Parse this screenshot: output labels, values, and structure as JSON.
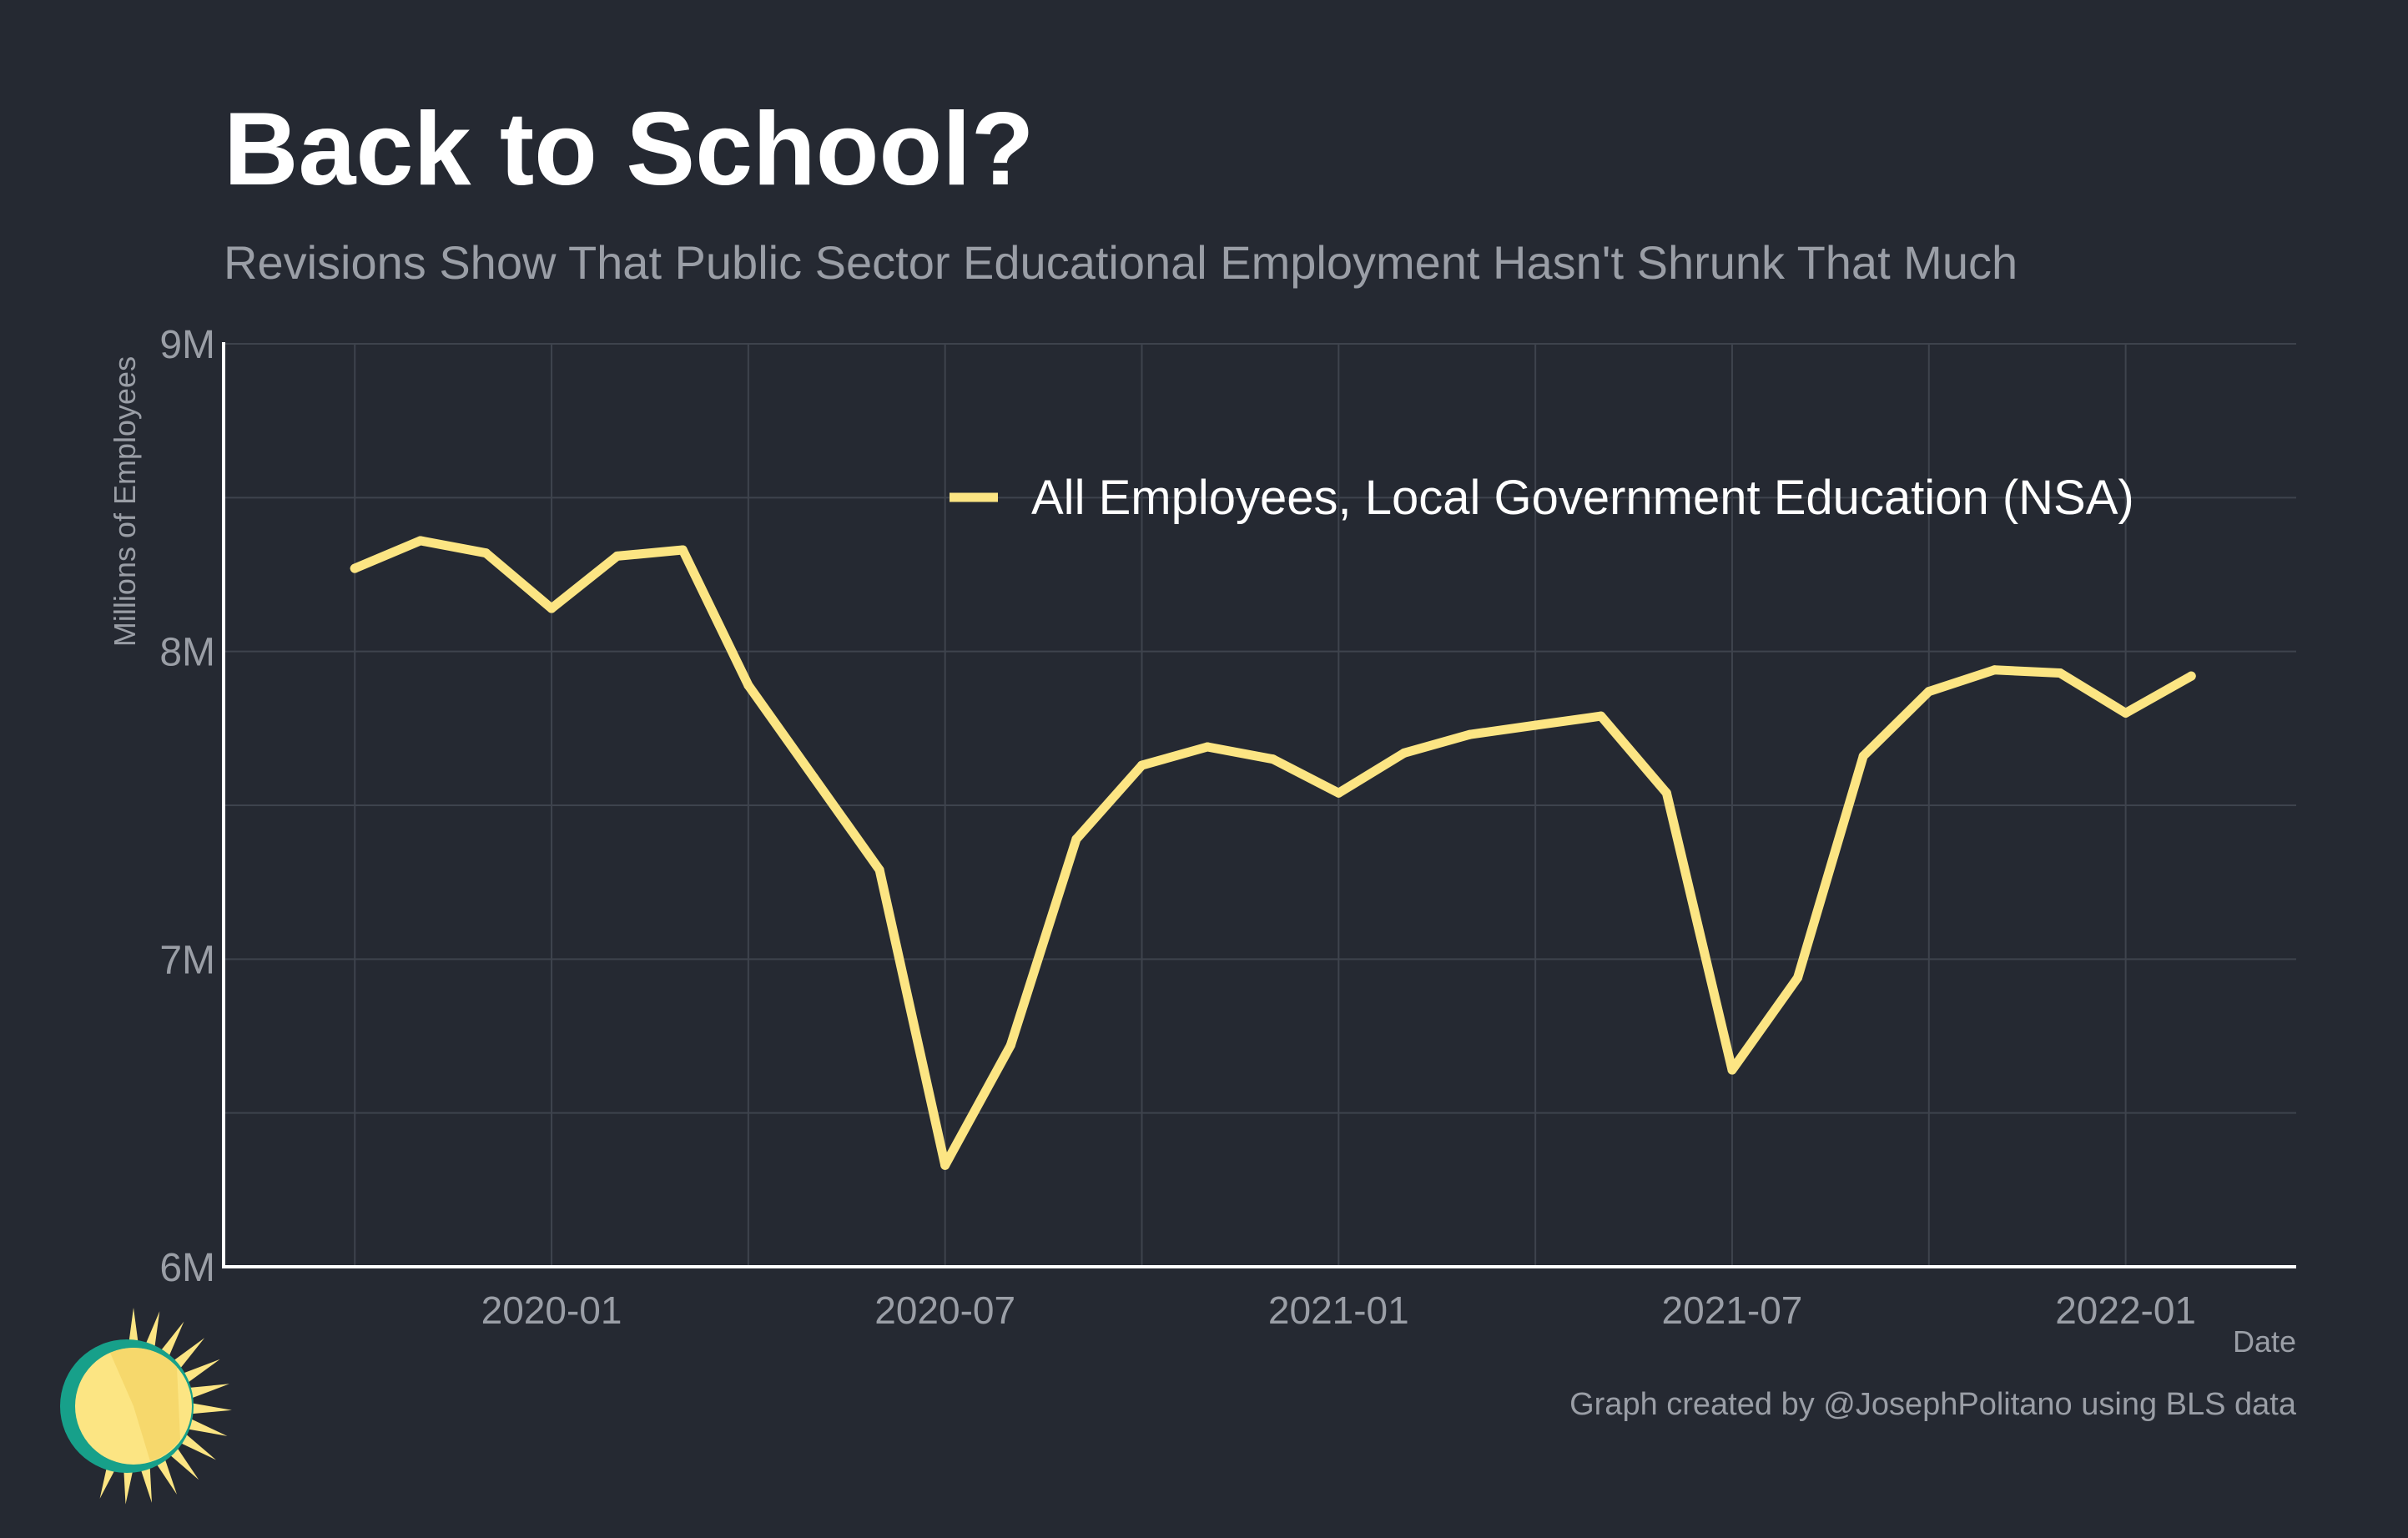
{
  "header": {
    "title": "Back to School?",
    "subtitle": "Revisions Show That Public Sector Educational Employment Hasn't Shrunk That Much"
  },
  "footer": {
    "source": "Graph created by @JosephPolitano using BLS data",
    "logo_icon": "sun-logo-icon"
  },
  "colors": {
    "background": "#252932",
    "line": "#fce583",
    "grid": "#3e434d",
    "axis": "#ffffff",
    "muted_text": "#9a9ea6"
  },
  "chart_data": {
    "type": "line",
    "title": "Back to School?",
    "subtitle": "Revisions Show That Public Sector Educational Employment Hasn't Shrunk That Much",
    "xlabel": "Date",
    "ylabel": "Millions of Employees",
    "ylim": [
      6,
      9
    ],
    "y_ticks": [
      6,
      7,
      8,
      9
    ],
    "y_tick_labels": [
      "6M",
      "7M",
      "8M",
      "9M"
    ],
    "x_ticks": [
      "2020-01",
      "2020-07",
      "2021-01",
      "2021-07",
      "2022-01"
    ],
    "grid": true,
    "legend_position": "top-right",
    "series": [
      {
        "name": "All Employees, Local Government Education (NSA)",
        "x": [
          "2019-10",
          "2019-11",
          "2019-12",
          "2020-01",
          "2020-02",
          "2020-03",
          "2020-04",
          "2020-05",
          "2020-06",
          "2020-07",
          "2020-08",
          "2020-09",
          "2020-10",
          "2020-11",
          "2020-12",
          "2021-01",
          "2021-02",
          "2021-03",
          "2021-04",
          "2021-05",
          "2021-06",
          "2021-07",
          "2021-08",
          "2021-09",
          "2021-10",
          "2021-11",
          "2021-12",
          "2022-01",
          "2022-02"
        ],
        "values": [
          8.27,
          8.36,
          8.32,
          8.14,
          8.31,
          8.33,
          7.89,
          7.59,
          7.29,
          6.33,
          6.72,
          7.39,
          7.63,
          7.69,
          7.65,
          7.54,
          7.67,
          7.73,
          7.76,
          7.79,
          7.54,
          6.64,
          6.94,
          7.66,
          7.87,
          7.94,
          7.93,
          7.8,
          7.92
        ]
      }
    ]
  }
}
